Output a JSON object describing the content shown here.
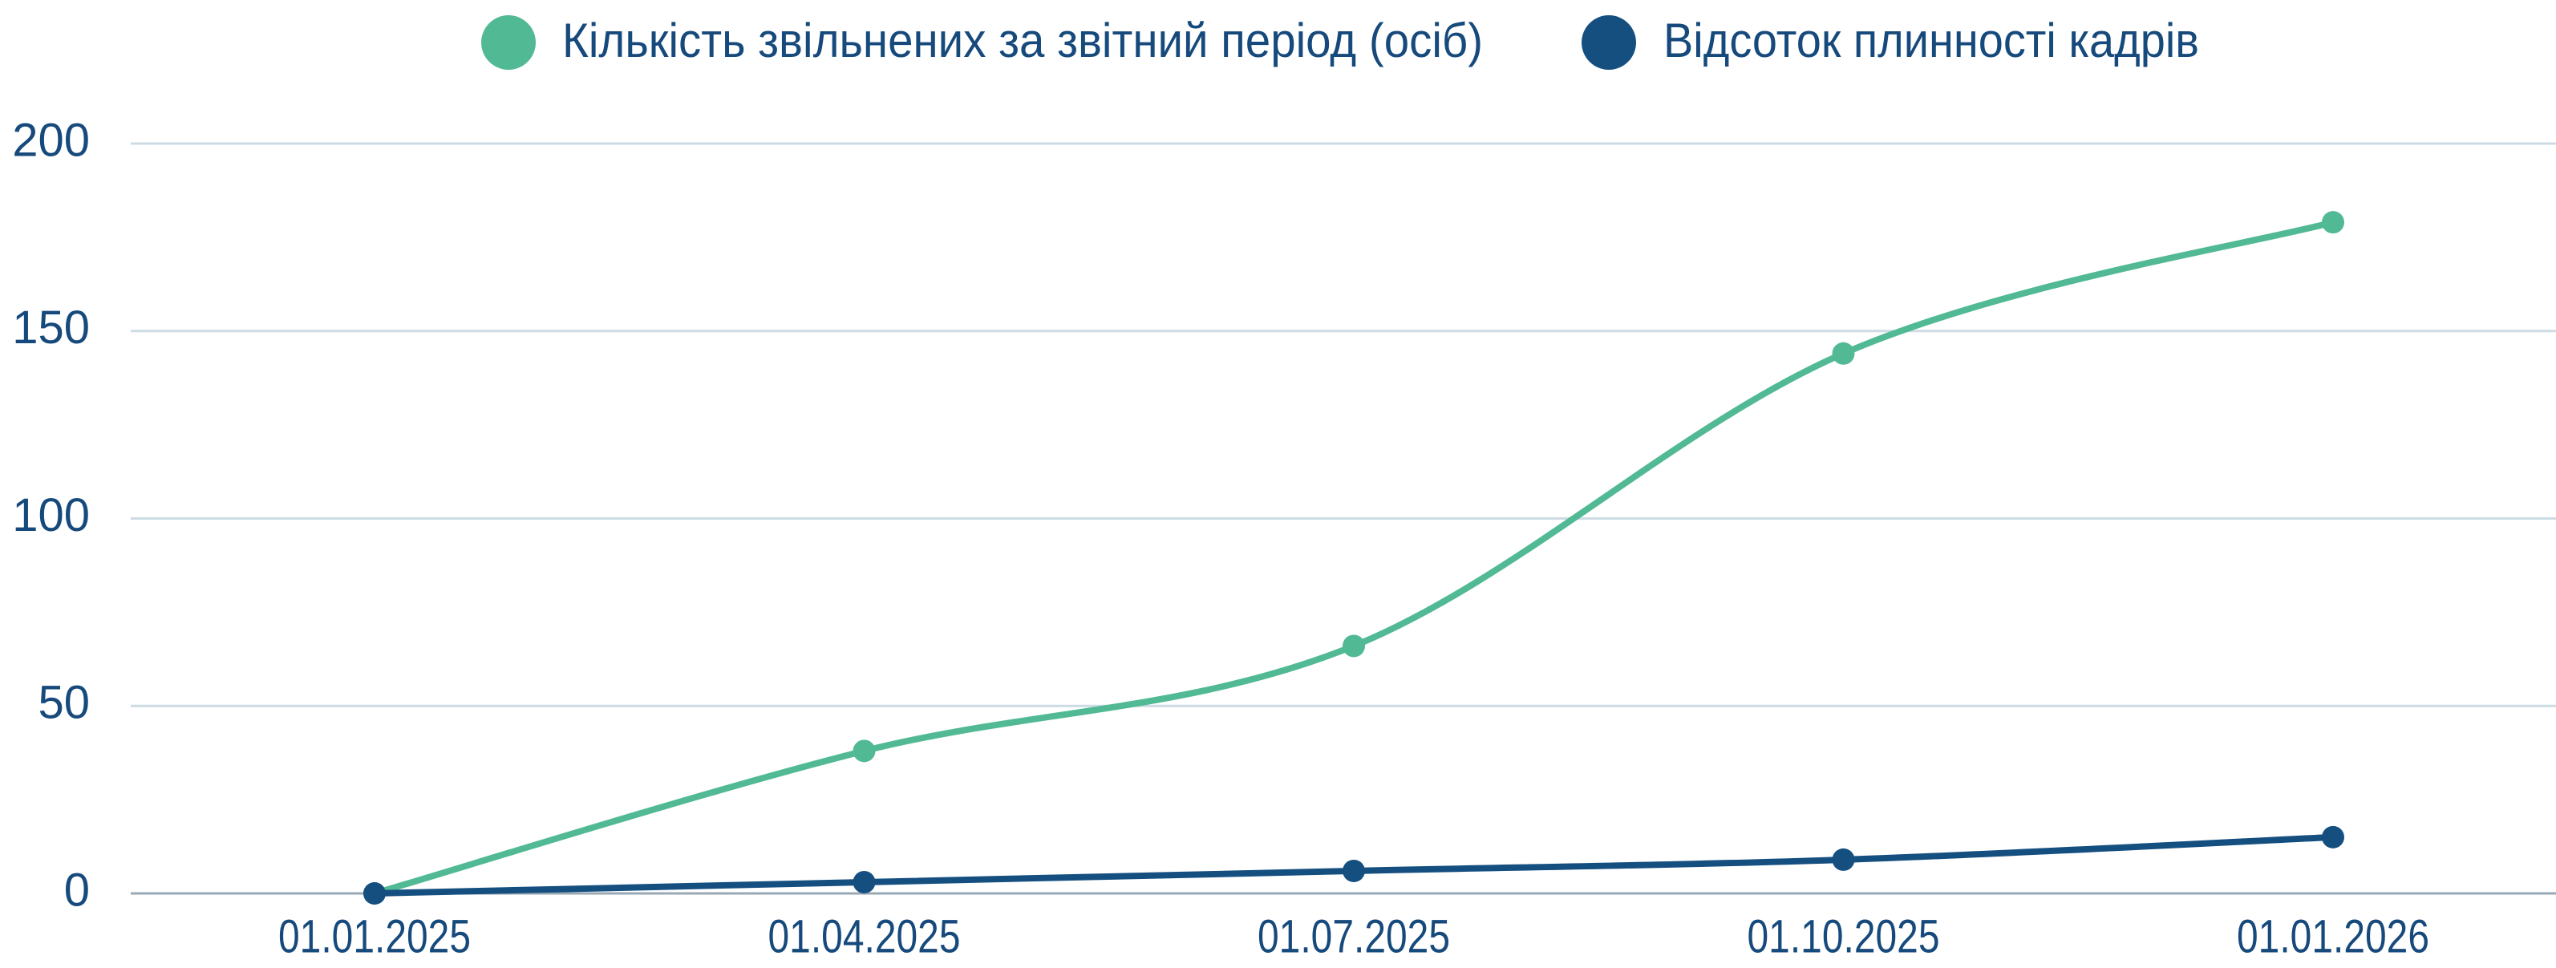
{
  "chart_data": {
    "type": "line",
    "categories": [
      "01.01.2025",
      "01.04.2025",
      "01.07.2025",
      "01.10.2025",
      "01.01.2026"
    ],
    "series": [
      {
        "name": "Кількість звільнених за звітний період (осіб)",
        "color": "#52b995",
        "values": [
          0,
          38,
          66,
          144,
          179
        ]
      },
      {
        "name": "Відсоток плинності кадрів",
        "color": "#154f80",
        "values": [
          0,
          3,
          6,
          9,
          15
        ]
      }
    ],
    "ylim": [
      0,
      200
    ],
    "yticks": [
      0,
      50,
      100,
      150,
      200
    ],
    "grid": true,
    "smooth": true,
    "legend": "top"
  }
}
